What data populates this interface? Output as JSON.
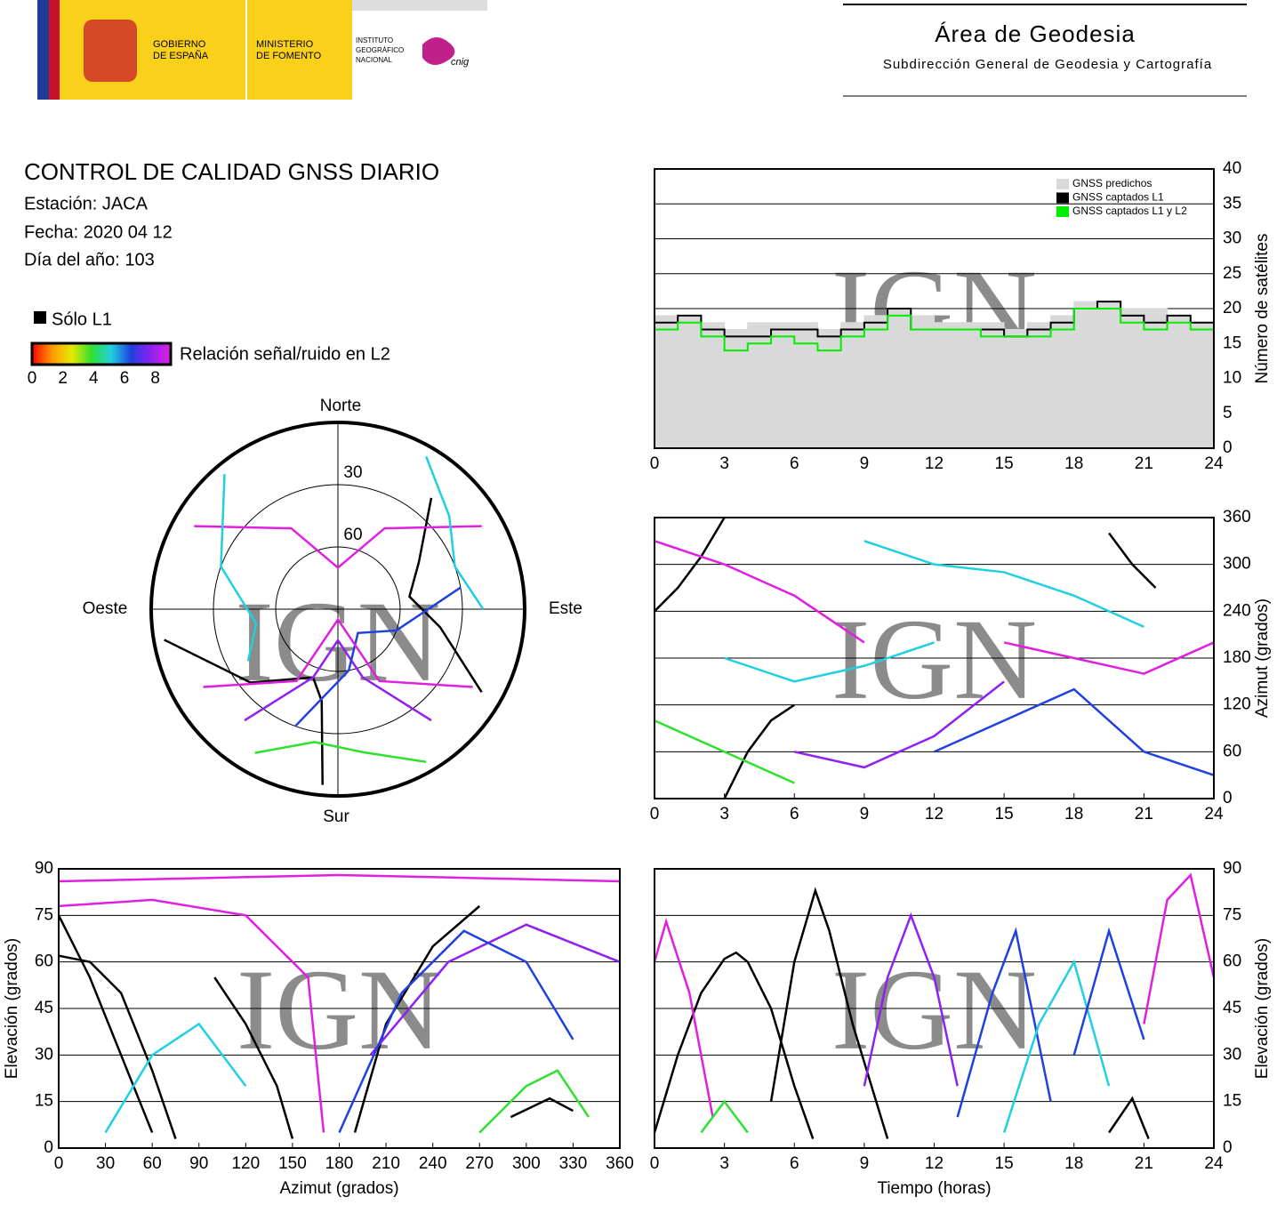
{
  "header": {
    "gobierno": [
      "GOBIERNO",
      "DE ESPAÑA"
    ],
    "ministerio": [
      "MINISTERIO",
      "DE FOMENTO"
    ],
    "instituto": [
      "INSTITUTO",
      "GEOGRÁFICO",
      "NACIONAL"
    ],
    "cnig": "cnig",
    "area": "Área de Geodesia",
    "subdireccion": "Subdirección General de Geodesia y Cartografía"
  },
  "info": {
    "title": "CONTROL DE CALIDAD GNSS DIARIO",
    "station": "Estación: JACA",
    "date": "Fecha: 2020 04 12",
    "doy": "Día del año: 103"
  },
  "legend": {
    "l1_only": "Sólo L1",
    "l1_color": "#000000",
    "colorbar": {
      "label": "Relación señal/ruido en L2",
      "lim": [
        0,
        9
      ],
      "ticks": [
        0,
        2,
        4,
        6,
        8
      ],
      "colors": [
        "#ff0000",
        "#ff9900",
        "#e8e800",
        "#30e030",
        "#20d0e0",
        "#2040e0",
        "#9020f0",
        "#e020e0"
      ]
    }
  },
  "watermark": "IGN",
  "chart_data": [
    {
      "type": "step",
      "ylabel": "Número de satélites",
      "y_side": "right",
      "grid": true,
      "legend": "upper right",
      "xlim": [
        0,
        24
      ],
      "xticks": [
        0,
        3,
        6,
        9,
        12,
        15,
        18,
        21,
        24
      ],
      "ylim": [
        0,
        40
      ],
      "yticks": [
        0,
        5,
        10,
        15,
        20,
        25,
        30,
        35,
        40
      ],
      "x": [
        0,
        1,
        2,
        3,
        4,
        5,
        6,
        7,
        8,
        9,
        10,
        11,
        12,
        13,
        14,
        15,
        16,
        17,
        18,
        19,
        20,
        21,
        22,
        23,
        24
      ],
      "series": [
        {
          "name": "GNSS predichos",
          "color": "#d9d9d9",
          "style": "area",
          "values": [
            19,
            19,
            18,
            17,
            18,
            18,
            18,
            17,
            18,
            19,
            20,
            19,
            18,
            18,
            18,
            17,
            18,
            19,
            21,
            21,
            20,
            20,
            19,
            18,
            18
          ]
        },
        {
          "name": "GNSS captados L1",
          "color": "#000000",
          "style": "line",
          "values": [
            18,
            19,
            17,
            16,
            16,
            17,
            17,
            16,
            17,
            18,
            20,
            17,
            17,
            17,
            17,
            16,
            17,
            18,
            20,
            21,
            19,
            18,
            19,
            18,
            17
          ]
        },
        {
          "name": "GNSS captados L1 y L2",
          "color": "#00ee00",
          "style": "line",
          "values": [
            17,
            18,
            16,
            14,
            15,
            16,
            15,
            14,
            16,
            17,
            19,
            17,
            17,
            17,
            16,
            16,
            16,
            17,
            20,
            20,
            18,
            17,
            18,
            17,
            16
          ]
        }
      ]
    },
    {
      "type": "line",
      "ylabel": "Azimut (grados)",
      "y_side": "right",
      "grid": true,
      "xlim": [
        0,
        24
      ],
      "xticks": [
        0,
        3,
        6,
        9,
        12,
        15,
        18,
        21,
        24
      ],
      "ylim": [
        0,
        360
      ],
      "yticks": [
        0,
        60,
        120,
        180,
        240,
        300,
        360
      ],
      "tracks": [
        {
          "color": "#000000",
          "x": [
            0,
            1,
            2,
            3
          ],
          "values": [
            240,
            270,
            310,
            360
          ]
        },
        {
          "color": "#000000",
          "x": [
            3,
            4,
            5,
            6
          ],
          "values": [
            0,
            60,
            100,
            120
          ]
        },
        {
          "color": "#e020e0",
          "x": [
            0,
            3,
            6,
            9
          ],
          "values": [
            330,
            300,
            260,
            200
          ]
        },
        {
          "color": "#9020f0",
          "x": [
            6,
            9,
            12,
            15
          ],
          "values": [
            60,
            40,
            80,
            150
          ]
        },
        {
          "color": "#20d0e0",
          "x": [
            9,
            12,
            15,
            18,
            21
          ],
          "values": [
            330,
            300,
            290,
            260,
            220
          ]
        },
        {
          "color": "#30e030",
          "x": [
            0,
            3,
            6
          ],
          "values": [
            100,
            60,
            20
          ]
        },
        {
          "color": "#2040e0",
          "x": [
            12,
            15,
            18,
            21,
            24
          ],
          "values": [
            60,
            100,
            140,
            60,
            30
          ]
        },
        {
          "color": "#e020e0",
          "x": [
            15,
            18,
            21,
            24
          ],
          "values": [
            200,
            180,
            160,
            200
          ]
        },
        {
          "color": "#000000",
          "x": [
            19.5,
            20.5,
            21.5
          ],
          "values": [
            340,
            300,
            270
          ]
        },
        {
          "color": "#20d0e0",
          "x": [
            3,
            6,
            9,
            12
          ],
          "values": [
            180,
            150,
            170,
            200
          ]
        }
      ]
    },
    {
      "type": "polar",
      "rlim": [
        90,
        0
      ],
      "rticks": [
        30,
        60
      ],
      "directions": [
        "Norte",
        "Este",
        "Sur",
        "Oeste"
      ],
      "tracks": [
        {
          "color": "#000000",
          "azimuth": [
            260,
            230,
            200,
            190,
            185
          ],
          "elevation": [
            5,
            35,
            55,
            45,
            5
          ]
        },
        {
          "color": "#000000",
          "azimuth": [
            40,
            60,
            80,
            100,
            120
          ],
          "elevation": [
            20,
            45,
            55,
            40,
            10
          ]
        },
        {
          "color": "#e020e0",
          "azimuth": [
            300,
            330,
            0,
            30,
            60
          ],
          "elevation": [
            10,
            45,
            70,
            45,
            10
          ]
        },
        {
          "color": "#9020f0",
          "azimuth": [
            220,
            200,
            180,
            160,
            140
          ],
          "elevation": [
            20,
            55,
            75,
            55,
            20
          ]
        },
        {
          "color": "#20d0e0",
          "azimuth": [
            320,
            290,
            260,
            240
          ],
          "elevation": [
            5,
            30,
            50,
            40
          ]
        },
        {
          "color": "#30e030",
          "azimuth": [
            150,
            170,
            190,
            210
          ],
          "elevation": [
            5,
            20,
            25,
            10
          ]
        },
        {
          "color": "#2040e0",
          "azimuth": [
            80,
            110,
            140,
            170,
            200
          ],
          "elevation": [
            30,
            60,
            75,
            60,
            30
          ]
        },
        {
          "color": "#20d0e0",
          "azimuth": [
            30,
            50,
            70,
            90
          ],
          "elevation": [
            5,
            20,
            30,
            20
          ]
        },
        {
          "color": "#e020e0",
          "azimuth": [
            120,
            150,
            180,
            210,
            240
          ],
          "elevation": [
            15,
            50,
            85,
            50,
            15
          ]
        }
      ]
    },
    {
      "type": "line",
      "xlabel": "Azimut (grados)",
      "ylabel": "Elevación (grados)",
      "y_side": "left",
      "grid": true,
      "xlim": [
        0,
        360
      ],
      "xticks": [
        0,
        30,
        60,
        90,
        120,
        150,
        180,
        210,
        240,
        270,
        300,
        330,
        360
      ],
      "ylim": [
        0,
        90
      ],
      "yticks": [
        0,
        15,
        30,
        45,
        60,
        75,
        90
      ],
      "tracks": [
        {
          "color": "#000000",
          "x": [
            0,
            20,
            40,
            60,
            75
          ],
          "values": [
            62,
            60,
            50,
            25,
            3
          ]
        },
        {
          "color": "#000000",
          "x": [
            0,
            20,
            40,
            60
          ],
          "values": [
            75,
            55,
            30,
            5
          ]
        },
        {
          "color": "#000000",
          "x": [
            190,
            210,
            240,
            270
          ],
          "values": [
            5,
            40,
            65,
            78
          ]
        },
        {
          "color": "#000000",
          "x": [
            100,
            120,
            140,
            150
          ],
          "values": [
            55,
            40,
            20,
            3
          ]
        },
        {
          "color": "#e020e0",
          "x": [
            0,
            60,
            120,
            160,
            170
          ],
          "values": [
            78,
            80,
            75,
            55,
            5
          ]
        },
        {
          "color": "#9020f0",
          "x": [
            200,
            250,
            300,
            360
          ],
          "values": [
            30,
            60,
            72,
            60
          ]
        },
        {
          "color": "#20d0e0",
          "x": [
            30,
            60,
            90,
            120
          ],
          "values": [
            5,
            30,
            40,
            20
          ]
        },
        {
          "color": "#30e030",
          "x": [
            270,
            300,
            320,
            340
          ],
          "values": [
            5,
            20,
            25,
            10
          ]
        },
        {
          "color": "#2040e0",
          "x": [
            180,
            220,
            260,
            300,
            330
          ],
          "values": [
            5,
            50,
            70,
            60,
            35
          ]
        },
        {
          "color": "#e020e0",
          "x": [
            0,
            90,
            180,
            270,
            360
          ],
          "values": [
            86,
            87,
            88,
            87,
            86
          ]
        },
        {
          "color": "#000000",
          "x": [
            290,
            315,
            330
          ],
          "values": [
            10,
            16,
            12
          ]
        }
      ]
    },
    {
      "type": "line",
      "xlabel": "Tiempo (horas)",
      "ylabel": "Elevación (grados)",
      "y_side": "right",
      "grid": true,
      "xlim": [
        0,
        24
      ],
      "xticks": [
        0,
        3,
        6,
        9,
        12,
        15,
        18,
        21,
        24
      ],
      "ylim": [
        0,
        90
      ],
      "yticks": [
        0,
        15,
        30,
        45,
        60,
        75,
        90
      ],
      "tracks": [
        {
          "color": "#000000",
          "x": [
            0,
            1,
            2,
            3,
            3.5,
            4,
            5,
            6,
            6.8
          ],
          "values": [
            5,
            30,
            50,
            61,
            63,
            60,
            45,
            20,
            3
          ]
        },
        {
          "color": "#000000",
          "x": [
            5,
            6,
            6.9,
            7.5,
            8.5,
            10
          ],
          "values": [
            15,
            60,
            83,
            70,
            40,
            3
          ]
        },
        {
          "color": "#e020e0",
          "x": [
            0,
            0.5,
            1.5,
            2.5
          ],
          "values": [
            60,
            73,
            50,
            10
          ]
        },
        {
          "color": "#9020f0",
          "x": [
            9,
            10,
            11,
            12,
            13
          ],
          "values": [
            20,
            55,
            75,
            55,
            20
          ]
        },
        {
          "color": "#2040e0",
          "x": [
            13,
            14.5,
            15.5,
            17
          ],
          "values": [
            10,
            50,
            70,
            15
          ]
        },
        {
          "color": "#20d0e0",
          "x": [
            15,
            16.5,
            18,
            19.5
          ],
          "values": [
            5,
            40,
            60,
            20
          ]
        },
        {
          "color": "#30e030",
          "x": [
            2,
            3,
            4
          ],
          "values": [
            5,
            15,
            5
          ]
        },
        {
          "color": "#e020e0",
          "x": [
            21,
            22,
            23,
            24
          ],
          "values": [
            40,
            80,
            88,
            55
          ]
        },
        {
          "color": "#2040e0",
          "x": [
            18,
            19.5,
            21
          ],
          "values": [
            30,
            70,
            35
          ]
        },
        {
          "color": "#000000",
          "x": [
            19.5,
            20.5,
            21.2
          ],
          "values": [
            5,
            16,
            3
          ]
        }
      ]
    }
  ]
}
